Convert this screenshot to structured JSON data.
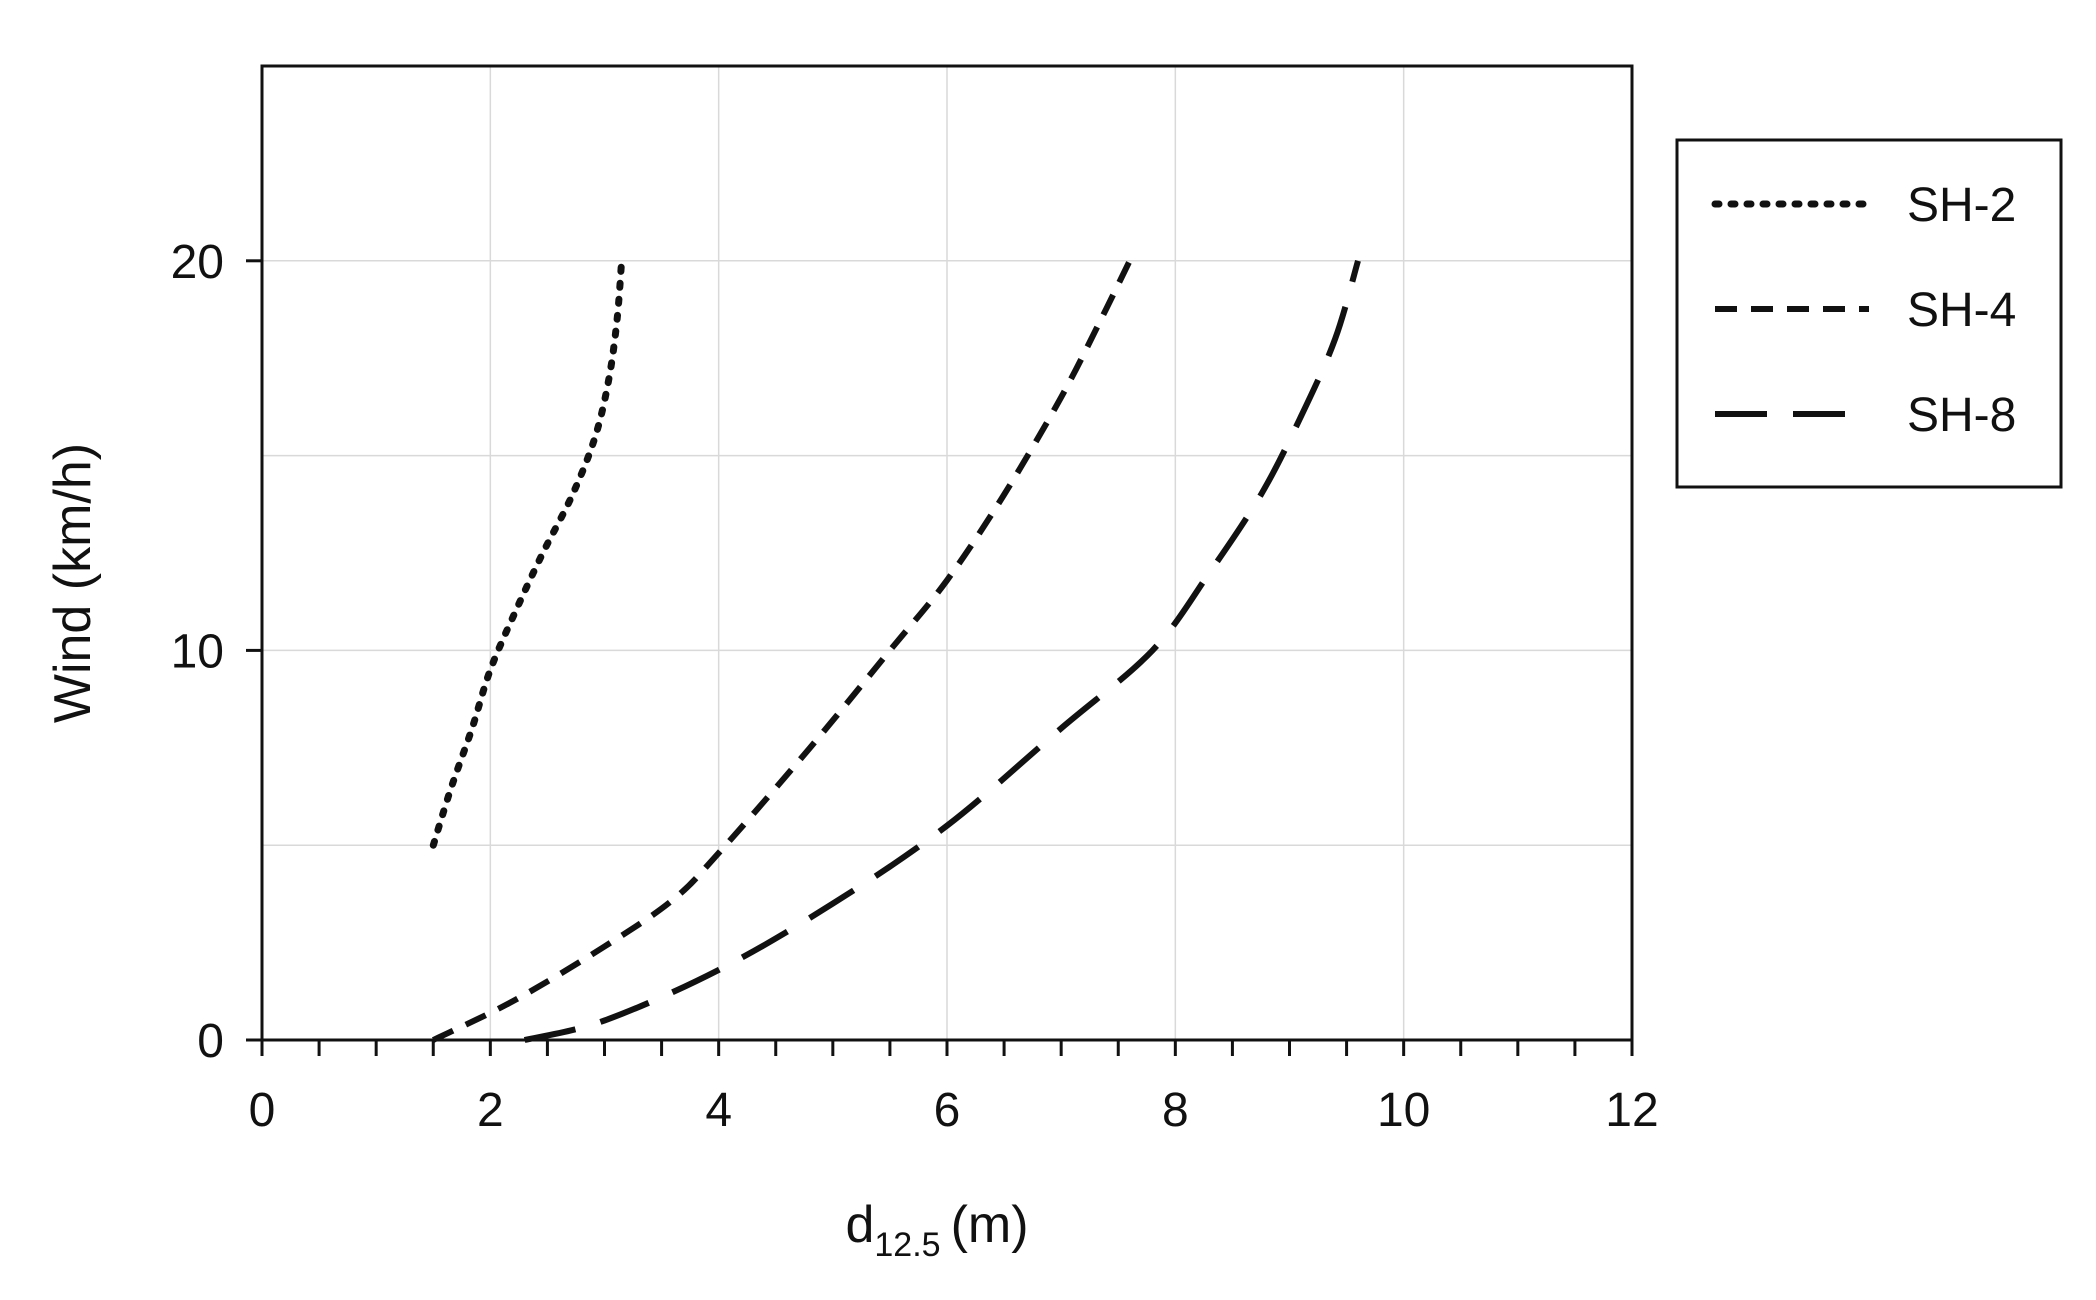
{
  "chart_data": {
    "type": "line",
    "title": "",
    "xlabel": "d",
    "xlabel_subscript": "12.5",
    "xlabel_unit": "(m)",
    "ylabel": "Wind (km/h)",
    "xlim": [
      0,
      12
    ],
    "ylim": [
      0,
      25
    ],
    "x_ticks": [
      "0",
      "2",
      "4",
      "6",
      "8",
      "10",
      "12"
    ],
    "y_ticks": [
      "0",
      "10",
      "20"
    ],
    "x_minor_step": 0.5,
    "y_grid_step": 5,
    "grid": true,
    "legend_position": "right",
    "series": [
      {
        "name": "SH-2",
        "style": "dotted",
        "x": [
          1.5,
          1.66,
          1.84,
          2.0,
          2.22,
          2.46,
          2.72,
          2.92,
          3.04,
          3.11,
          3.15
        ],
        "y": [
          5,
          6.5,
          8,
          9.5,
          11,
          12.5,
          14,
          15.5,
          17,
          18.5,
          20
        ]
      },
      {
        "name": "SH-4",
        "style": "dashed",
        "x": [
          1.5,
          2.2,
          3.0,
          3.6,
          4.0,
          4.8,
          5.5,
          6.0,
          6.5,
          7.0,
          7.35,
          7.6
        ],
        "y": [
          0,
          1,
          2.4,
          3.6,
          4.8,
          7.5,
          10,
          11.8,
          14,
          16.5,
          18.5,
          20
        ]
      },
      {
        "name": "SH-8",
        "style": "long-dashed",
        "x": [
          2.3,
          3.0,
          4.0,
          5.0,
          6.0,
          7.0,
          7.8,
          8.3,
          8.75,
          9.1,
          9.4,
          9.6
        ],
        "y": [
          0,
          0.5,
          1.8,
          3.5,
          5.5,
          8,
          10,
          12,
          14,
          16,
          18,
          20
        ]
      }
    ],
    "colors": {
      "line": "#111111",
      "grid": "#d9d9d9",
      "axis": "#111111"
    }
  }
}
